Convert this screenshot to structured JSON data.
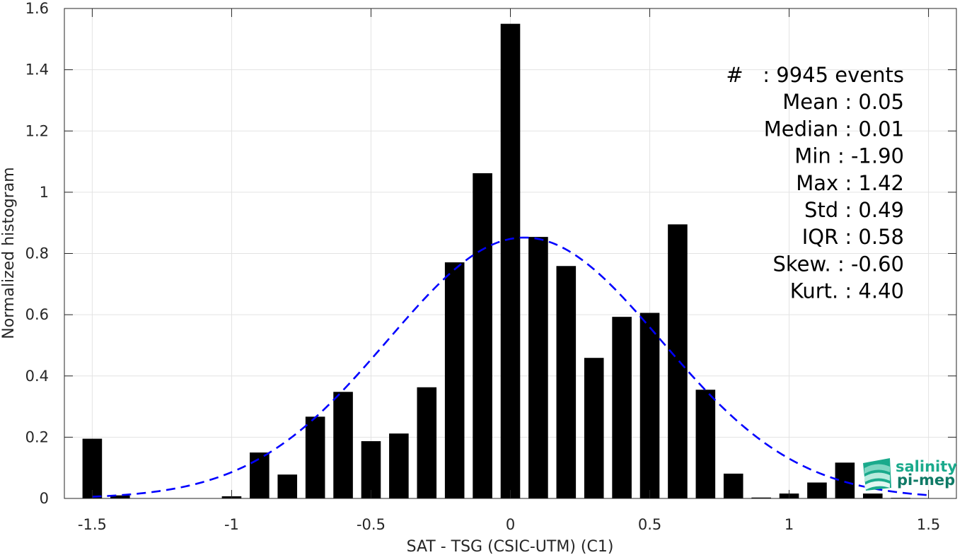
{
  "chart_data": {
    "type": "bar",
    "xlabel": "SAT - TSG (CSIC-UTM) (C1)",
    "ylabel": "Normalized histogram",
    "xlim": [
      -1.6,
      1.6
    ],
    "ylim": [
      0,
      1.6
    ],
    "grid": true,
    "xticks": [
      {
        "value": -1.5,
        "label": "-1.5"
      },
      {
        "value": -1,
        "label": "-1"
      },
      {
        "value": -0.5,
        "label": "-0.5"
      },
      {
        "value": 0,
        "label": "0"
      },
      {
        "value": 0.5,
        "label": "0.5"
      },
      {
        "value": 1,
        "label": "1"
      },
      {
        "value": 1.5,
        "label": "1.5"
      }
    ],
    "yticks": [
      {
        "value": 0,
        "label": "0"
      },
      {
        "value": 0.2,
        "label": "0.2"
      },
      {
        "value": 0.4,
        "label": "0.4"
      },
      {
        "value": 0.6,
        "label": "0.6"
      },
      {
        "value": 0.8,
        "label": "0.8"
      },
      {
        "value": 1.0,
        "label": "1"
      },
      {
        "value": 1.2,
        "label": "1.2"
      },
      {
        "value": 1.4,
        "label": "1.4"
      },
      {
        "value": 1.6,
        "label": "1.6"
      }
    ],
    "bar_width": 0.07,
    "bars": [
      {
        "x": -1.5,
        "y": 0.195
      },
      {
        "x": -1.4,
        "y": 0.01
      },
      {
        "x": -1.3,
        "y": 0.0
      },
      {
        "x": -1.2,
        "y": 0.0
      },
      {
        "x": -1.1,
        "y": 0.0
      },
      {
        "x": -1.0,
        "y": 0.007
      },
      {
        "x": -0.9,
        "y": 0.15
      },
      {
        "x": -0.8,
        "y": 0.078
      },
      {
        "x": -0.7,
        "y": 0.267
      },
      {
        "x": -0.6,
        "y": 0.348
      },
      {
        "x": -0.5,
        "y": 0.187
      },
      {
        "x": -0.4,
        "y": 0.212
      },
      {
        "x": -0.3,
        "y": 0.363
      },
      {
        "x": -0.2,
        "y": 0.771
      },
      {
        "x": -0.1,
        "y": 1.062
      },
      {
        "x": 0.0,
        "y": 1.55
      },
      {
        "x": 0.1,
        "y": 0.854
      },
      {
        "x": 0.2,
        "y": 0.759
      },
      {
        "x": 0.3,
        "y": 0.459
      },
      {
        "x": 0.4,
        "y": 0.593
      },
      {
        "x": 0.5,
        "y": 0.606
      },
      {
        "x": 0.6,
        "y": 0.895
      },
      {
        "x": 0.7,
        "y": 0.355
      },
      {
        "x": 0.8,
        "y": 0.081
      },
      {
        "x": 0.9,
        "y": 0.003
      },
      {
        "x": 1.0,
        "y": 0.016
      },
      {
        "x": 1.1,
        "y": 0.052
      },
      {
        "x": 1.2,
        "y": 0.117
      },
      {
        "x": 1.3,
        "y": 0.016
      },
      {
        "x": 1.4,
        "y": 0.002
      }
    ],
    "fit_curve": {
      "type": "gaussian",
      "mean": 0.05,
      "std": 0.49,
      "peak": 0.852,
      "x_range": [
        -1.5,
        1.5
      ],
      "color": "#0000ff",
      "style": "dashed"
    },
    "bar_color": "#000000"
  },
  "stats": {
    "lines": [
      {
        "label": "#  ",
        "value": ": 9945 events"
      },
      {
        "label": "Mean",
        "value": ": 0.05"
      },
      {
        "label": "Median",
        "value": ": 0.01"
      },
      {
        "label": "Min",
        "value": ": -1.90"
      },
      {
        "label": "Max",
        "value": ": 1.42"
      },
      {
        "label": "Std",
        "value": ": 0.49"
      },
      {
        "label": "IQR",
        "value": ": 0.58"
      },
      {
        "label": "Skew.",
        "value": ": -0.60"
      },
      {
        "label": "Kurt.",
        "value": ": 4.40"
      }
    ]
  },
  "logo": {
    "line1": "salinity",
    "line2": "pi-mep",
    "color_1": "#1aaa8c",
    "color_2": "#0f7a66"
  }
}
